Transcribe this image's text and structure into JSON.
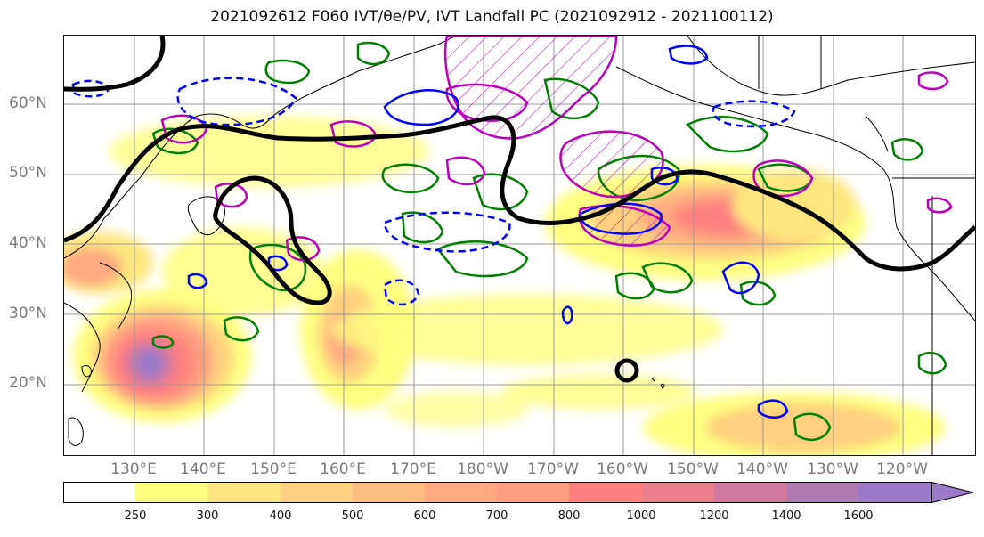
{
  "title": {
    "text": "2021092612 F060 IVT/θe/PV, IVT Landfall PC (2021092912 - 2021100112)"
  },
  "lat_labels": [
    "60°N",
    "50°N",
    "40°N",
    "30°N",
    "20°N"
  ],
  "lon_labels": [
    "130°E",
    "140°E",
    "150°E",
    "160°E",
    "170°E",
    "180°W",
    "170°W",
    "160°W",
    "150°W",
    "140°W",
    "130°W",
    "120°W"
  ],
  "colorbar": {
    "ticks": [
      "250",
      "300",
      "400",
      "500",
      "600",
      "700",
      "800",
      "1000",
      "1200",
      "1400",
      "1600"
    ],
    "colors": [
      "#ffffff",
      "#ffff80",
      "#ffe680",
      "#ffd080",
      "#ffbe80",
      "#ffaa80",
      "#ff9e80",
      "#ff8080",
      "#e9808c",
      "#d27a9e",
      "#b27ab2",
      "#9b7ac8"
    ]
  },
  "legend_colors": {
    "coastline": "#000000",
    "theta_e_contour": "#000000",
    "pv_contour": "#008000",
    "ivt_pc_contour": "#0000ff",
    "pv_hatched": "#bb00bb"
  }
}
